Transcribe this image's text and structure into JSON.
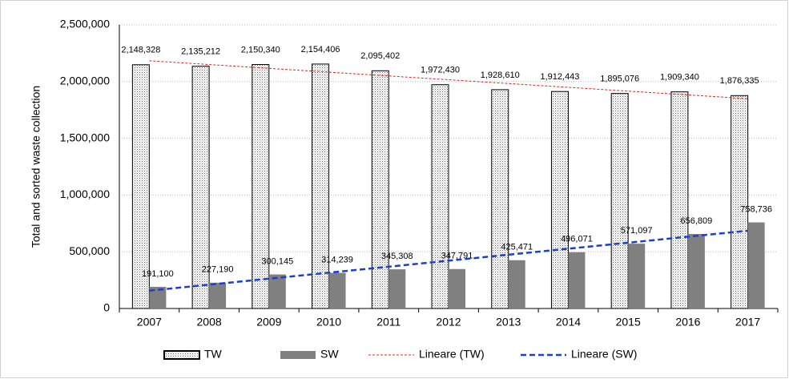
{
  "chart_data": {
    "type": "bar",
    "y_label": "Total and sorted waste collection",
    "categories": [
      "2007",
      "2008",
      "2009",
      "2010",
      "2011",
      "2012",
      "2013",
      "2014",
      "2015",
      "2016",
      "2017"
    ],
    "series": [
      {
        "name": "TW",
        "color": "#000000",
        "pattern": "dots",
        "values": [
          2148328,
          2135212,
          2150340,
          2154406,
          2095402,
          1972430,
          1928610,
          1912443,
          1895076,
          1909340,
          1876335
        ],
        "value_labels": [
          "2,148,328",
          "2,135,212",
          "2,150,340",
          "2,154,406",
          "2,095,402",
          "1,972,430",
          "1,928,610",
          "1,912,443",
          "1,895,076",
          "1,909,340",
          "1,876,335"
        ],
        "trendline": {
          "name": "Lineare (TW)",
          "color": "#e8251c",
          "width": 1,
          "dash": "3,2"
        }
      },
      {
        "name": "SW",
        "color": "#808080",
        "values": [
          191100,
          227190,
          300145,
          314239,
          345308,
          347791,
          425471,
          496071,
          571097,
          656809,
          758736
        ],
        "value_labels": [
          "191,100",
          "227,190",
          "300,145",
          "314,239",
          "345,308",
          "347,791",
          "425,471",
          "496,071",
          "571,097",
          "656,809",
          "758,736"
        ],
        "trendline": {
          "name": "Lineare (SW)",
          "color": "#1c3fd0",
          "width": 2.5,
          "dash": "7,4"
        }
      }
    ],
    "ylim": [
      0,
      2500000
    ],
    "yticks": [
      0,
      {
        "value": 500000,
        "label": "500,000"
      },
      {
        "value": 1000000,
        "label": "1,000,000"
      },
      {
        "value": 1500000,
        "label": "1,500,000"
      },
      {
        "value": 2000000,
        "label": "2,000,000"
      },
      {
        "value": 2500000,
        "label": "2,500,000"
      }
    ],
    "grid": true,
    "legend": "bottom"
  }
}
